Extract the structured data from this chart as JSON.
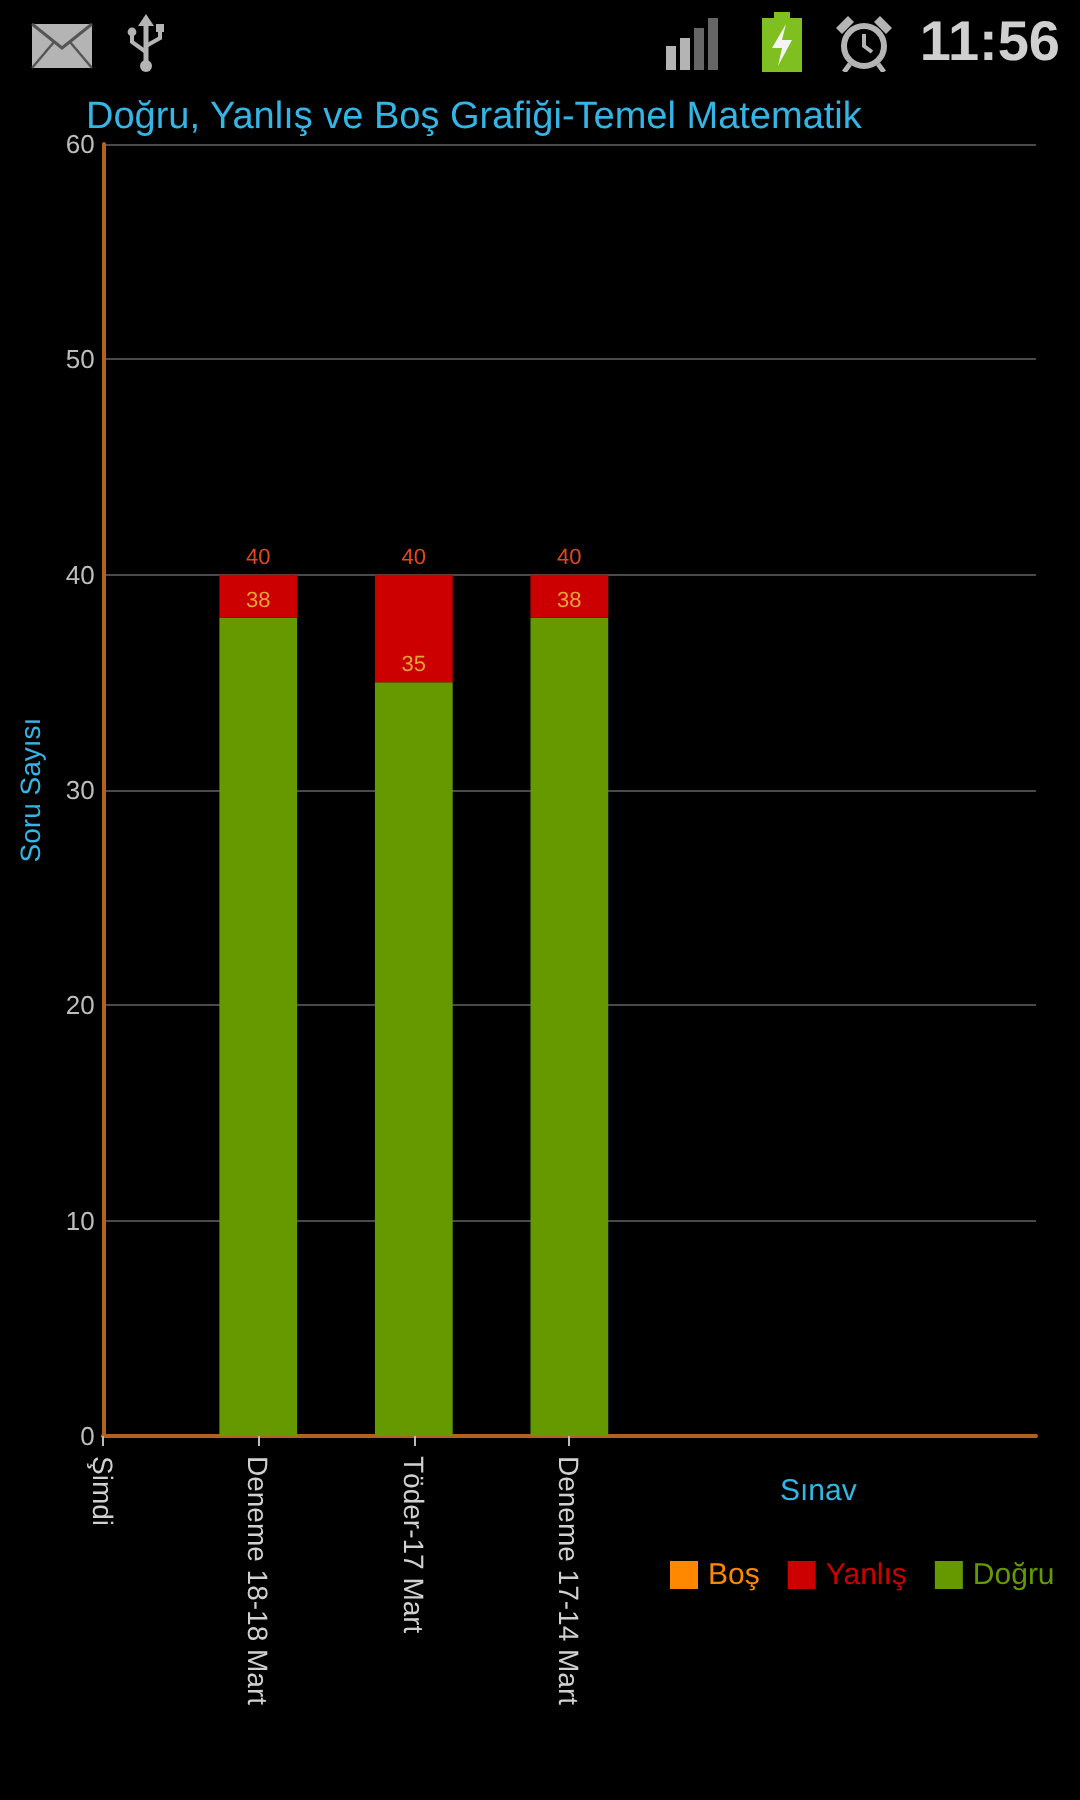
{
  "chart_data": {
    "type": "bar",
    "title": "Doğru, Yanlış ve Boş Grafiği-Temel Matematik",
    "xlabel": "Sınav",
    "ylabel": "Soru Sayısı",
    "categories": [
      "Şimdi",
      "Deneme 18-18 Mart",
      "Töder-17 Mart",
      "Deneme 17-14 Mart",
      null,
      null,
      null
    ],
    "series": [
      {
        "name": "Doğru",
        "color": "#669900",
        "values": [
          null,
          38,
          35,
          38,
          null,
          null,
          null
        ],
        "value_labels": [
          null,
          "38",
          "35",
          "38",
          null,
          null,
          null
        ]
      },
      {
        "name": "Yanlış",
        "color": "#cc0000",
        "values": [
          null,
          2,
          5,
          2,
          null,
          null,
          null
        ]
      },
      {
        "name": "Boş",
        "color": "#ff8800",
        "values": [
          null,
          0,
          0,
          0,
          null,
          null,
          null
        ]
      }
    ],
    "totals": [
      null,
      "40",
      "40",
      "40",
      null,
      null,
      null
    ],
    "stacked": true,
    "ylim": [
      0,
      60
    ],
    "yticks": [
      0,
      10,
      20,
      30,
      40,
      50,
      60
    ],
    "grid": "y",
    "legend": "bottom",
    "annotations": [
      "11:56"
    ]
  }
}
